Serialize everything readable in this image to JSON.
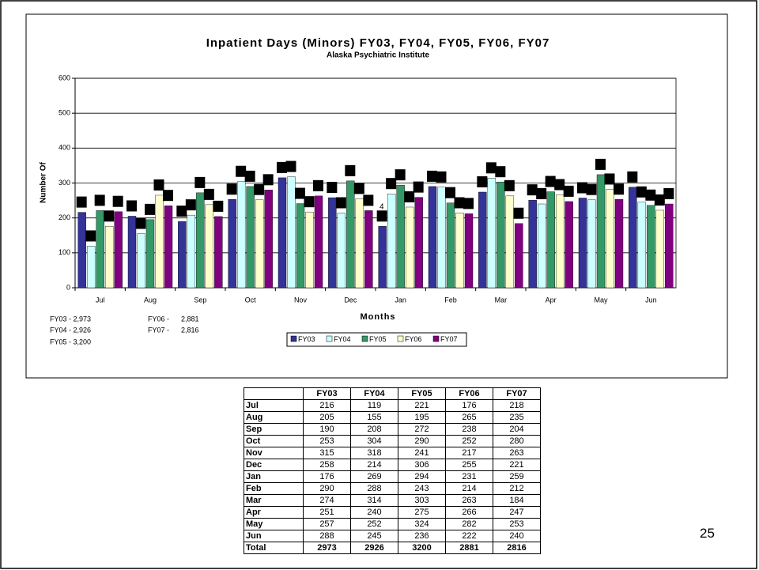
{
  "chart_data": {
    "type": "bar",
    "title": "Inpatient Days (Minors) FY03, FY04, FY05, FY06, FY07",
    "subtitle": "Alaska Psychiatric Institute",
    "y_label": "Number Of",
    "x_label": "Months",
    "categories": [
      "Jul",
      "Aug",
      "Sep",
      "Oct",
      "Nov",
      "Dec",
      "Jan",
      "Feb",
      "Mar",
      "Apr",
      "May",
      "Jun"
    ],
    "series": [
      {
        "name": "FY03",
        "color": "#333399",
        "values": [
          216,
          205,
          190,
          253,
          315,
          258,
          176,
          290,
          274,
          251,
          257,
          288
        ]
      },
      {
        "name": "FY04",
        "color": "#ccffff",
        "values": [
          119,
          155,
          208,
          304,
          318,
          214,
          269,
          288,
          314,
          240,
          252,
          245
        ]
      },
      {
        "name": "FY05",
        "color": "#339966",
        "values": [
          221,
          195,
          272,
          290,
          241,
          306,
          294,
          243,
          303,
          275,
          324,
          236
        ]
      },
      {
        "name": "FY06",
        "color": "#ffffcc",
        "values": [
          176,
          265,
          238,
          252,
          217,
          255,
          231,
          214,
          263,
          266,
          282,
          222
        ]
      },
      {
        "name": "FY07",
        "color": "#800080",
        "values": [
          218,
          235,
          204,
          280,
          263,
          221,
          259,
          212,
          184,
          247,
          253,
          240
        ]
      }
    ],
    "ylim": [
      0,
      600
    ],
    "yticks": [
      0,
      100,
      200,
      300,
      400,
      500,
      600
    ],
    "grid": true,
    "annotation": "4",
    "notes": [
      "FY03 - 2,973",
      "FY04 - 2,926",
      "FY05 - 3,200",
      "FY06 -      2,881",
      "FY07 -      2,816"
    ]
  },
  "table": {
    "rows": [
      [
        "",
        "FY03",
        "FY04",
        "FY05",
        "FY06",
        "FY07"
      ],
      [
        "Jul",
        216,
        119,
        221,
        176,
        218
      ],
      [
        "Aug",
        205,
        155,
        195,
        265,
        235
      ],
      [
        "Sep",
        190,
        208,
        272,
        238,
        204
      ],
      [
        "Oct",
        253,
        304,
        290,
        252,
        280
      ],
      [
        "Nov",
        315,
        318,
        241,
        217,
        263
      ],
      [
        "Dec",
        258,
        214,
        306,
        255,
        221
      ],
      [
        "Jan",
        176,
        269,
        294,
        231,
        259
      ],
      [
        "Feb",
        290,
        288,
        243,
        214,
        212
      ],
      [
        "Mar",
        274,
        314,
        303,
        263,
        184
      ],
      [
        "Apr",
        251,
        240,
        275,
        266,
        247
      ],
      [
        "May",
        257,
        252,
        324,
        282,
        253
      ],
      [
        "Jun",
        288,
        245,
        236,
        222,
        240
      ],
      [
        "Total",
        2973,
        2926,
        3200,
        2881,
        2816
      ]
    ]
  },
  "page_number": "25"
}
